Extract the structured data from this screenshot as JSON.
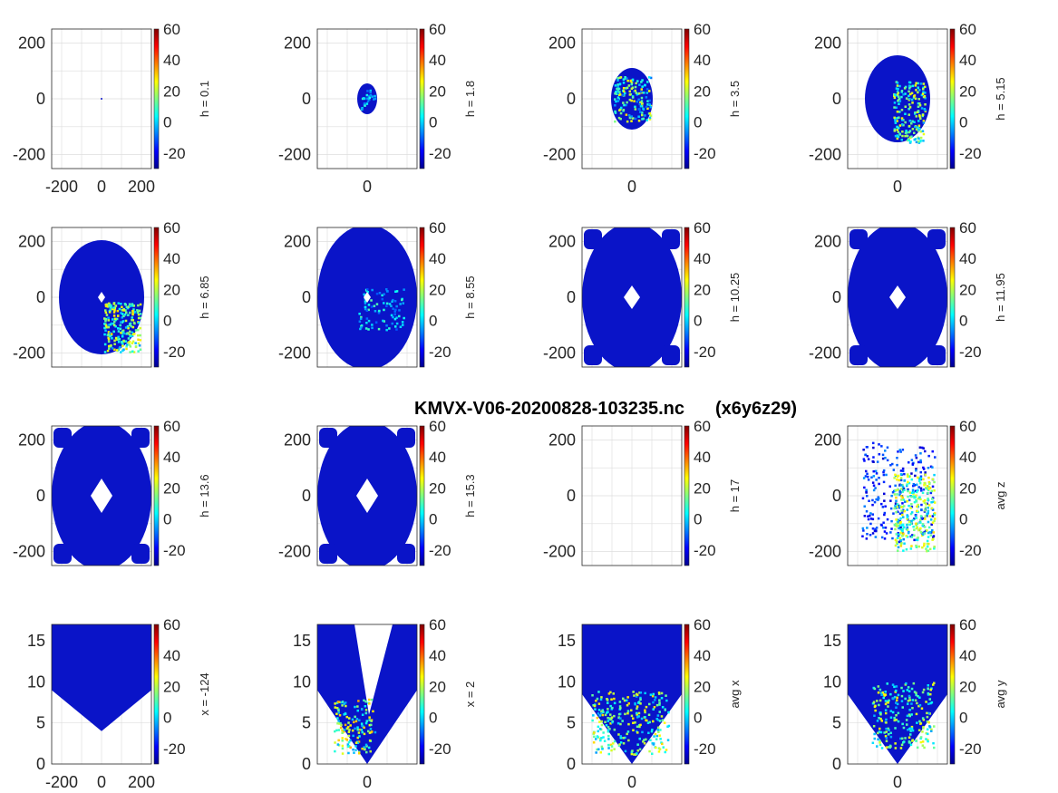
{
  "suptitle": {
    "filename": "KMVX-V06-20200828-103235.nc",
    "grid": "(x6y6z29)"
  },
  "chart_data": {
    "type": "heatmap",
    "colormap": "jet",
    "colorbar": {
      "range": [
        -30,
        60
      ],
      "ticks": [
        "60",
        "40",
        "20",
        "0",
        "-20"
      ]
    },
    "grid": true,
    "panels": [
      {
        "label": "h = 0.1",
        "view": "horizontal",
        "xticks": [
          "-200",
          "0",
          "200"
        ],
        "yticks": [
          "200",
          "0",
          "-200"
        ],
        "xlim": [
          -250,
          250
        ],
        "ylim": [
          -250,
          250
        ],
        "shape": "dot"
      },
      {
        "label": "h = 1.8",
        "view": "horizontal",
        "xticks": [
          "0"
        ],
        "yticks": [
          "200",
          "0",
          "-200"
        ],
        "xlim": [
          -250,
          250
        ],
        "ylim": [
          -250,
          250
        ],
        "shape": "small-ellipse"
      },
      {
        "label": "h = 3.5",
        "view": "horizontal",
        "xticks": [
          "0"
        ],
        "yticks": [
          "200",
          "0",
          "-200"
        ],
        "xlim": [
          -250,
          250
        ],
        "ylim": [
          -250,
          250
        ],
        "shape": "ellipse"
      },
      {
        "label": "h = 5.15",
        "view": "horizontal",
        "xticks": [
          "0"
        ],
        "yticks": [
          "200",
          "0",
          "-200"
        ],
        "xlim": [
          -250,
          250
        ],
        "ylim": [
          -250,
          250
        ],
        "shape": "ellipse"
      },
      {
        "label": "h = 6.85",
        "view": "horizontal",
        "xticks": [],
        "yticks": [
          "200",
          "0",
          "-200"
        ],
        "xlim": [
          -250,
          250
        ],
        "ylim": [
          -250,
          250
        ],
        "shape": "ellipse-diamond"
      },
      {
        "label": "h = 8.55",
        "view": "horizontal",
        "xticks": [],
        "yticks": [
          "200",
          "0",
          "-200"
        ],
        "xlim": [
          -250,
          250
        ],
        "ylim": [
          -250,
          250
        ],
        "shape": "ellipse-diamond"
      },
      {
        "label": "h = 10.25",
        "view": "horizontal",
        "xticks": [],
        "yticks": [
          "200",
          "0",
          "-200"
        ],
        "xlim": [
          -250,
          250
        ],
        "ylim": [
          -250,
          250
        ],
        "shape": "mosaic"
      },
      {
        "label": "h = 11.95",
        "view": "horizontal",
        "xticks": [],
        "yticks": [
          "200",
          "0",
          "-200"
        ],
        "xlim": [
          -250,
          250
        ],
        "ylim": [
          -250,
          250
        ],
        "shape": "mosaic"
      },
      {
        "label": "h = 13.6",
        "view": "horizontal",
        "xticks": [],
        "yticks": [
          "200",
          "0",
          "-200"
        ],
        "xlim": [
          -250,
          250
        ],
        "ylim": [
          -250,
          250
        ],
        "shape": "mosaic"
      },
      {
        "label": "h = 15.3",
        "view": "horizontal",
        "xticks": [],
        "yticks": [
          "200",
          "0",
          "-200"
        ],
        "xlim": [
          -250,
          250
        ],
        "ylim": [
          -250,
          250
        ],
        "shape": "mosaic"
      },
      {
        "label": "h = 17",
        "view": "horizontal",
        "xticks": [],
        "yticks": [
          "200",
          "0",
          "-200"
        ],
        "xlim": [
          -250,
          250
        ],
        "ylim": [
          -250,
          250
        ],
        "shape": "empty"
      },
      {
        "label": "avg z",
        "view": "horizontal",
        "xticks": [],
        "yticks": [
          "200",
          "0",
          "-200"
        ],
        "xlim": [
          -250,
          250
        ],
        "ylim": [
          -250,
          250
        ],
        "shape": "average"
      },
      {
        "label": "x = -124",
        "view": "vertical",
        "xticks": [
          "-200",
          "0",
          "200"
        ],
        "yticks": [
          "15",
          "10",
          "5",
          "0"
        ],
        "xlim": [
          -250,
          250
        ],
        "ylim": [
          0,
          17
        ],
        "shape": "cone-solid"
      },
      {
        "label": "x = 2",
        "view": "vertical",
        "xticks": [
          "0"
        ],
        "yticks": [
          "15",
          "10",
          "5",
          "0"
        ],
        "xlim": [
          -250,
          250
        ],
        "ylim": [
          0,
          17
        ],
        "shape": "cone-gap"
      },
      {
        "label": "avg x",
        "view": "vertical",
        "xticks": [
          "0"
        ],
        "yticks": [
          "15",
          "10",
          "5",
          "0"
        ],
        "xlim": [
          -250,
          250
        ],
        "ylim": [
          0,
          17
        ],
        "shape": "cone-avg"
      },
      {
        "label": "avg y",
        "view": "vertical",
        "xticks": [
          "0"
        ],
        "yticks": [
          "15",
          "10",
          "5",
          "0"
        ],
        "xlim": [
          -250,
          250
        ],
        "ylim": [
          0,
          17
        ],
        "shape": "cone-avg"
      }
    ]
  }
}
